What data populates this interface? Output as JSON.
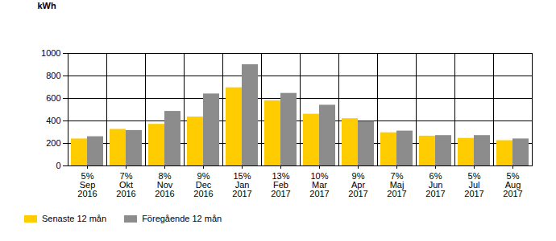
{
  "chart_data": {
    "type": "bar",
    "categories": [
      "5%\nSep\n2016",
      "7%\nOkt\n2016",
      "8%\nNov\n2016",
      "9%\nDec\n2016",
      "15%\nJan\n2017",
      "13%\nFeb\n2017",
      "10%\nMar\n2017",
      "9%\nApr\n2017",
      "7%\nMaj\n2017",
      "6%\nJun\n2017",
      "5%\nJul\n2017",
      "5%\nAug\n2017"
    ],
    "series": [
      {
        "name": "Senaste 12 mån",
        "color": "#ffcc00",
        "values": [
          240,
          325,
          370,
          435,
          695,
          580,
          460,
          420,
          295,
          265,
          245,
          225
        ]
      },
      {
        "name": "Föregående 12 mån",
        "color": "#8c8c8c",
        "values": [
          260,
          315,
          485,
          640,
          900,
          645,
          540,
          395,
          310,
          270,
          270,
          240
        ]
      }
    ],
    "y_label": "kWh",
    "ylim": [
      0,
      1000
    ],
    "yticks": [
      0,
      200,
      400,
      600,
      800,
      1000
    ],
    "grid": true,
    "legend": "bottom-left"
  }
}
